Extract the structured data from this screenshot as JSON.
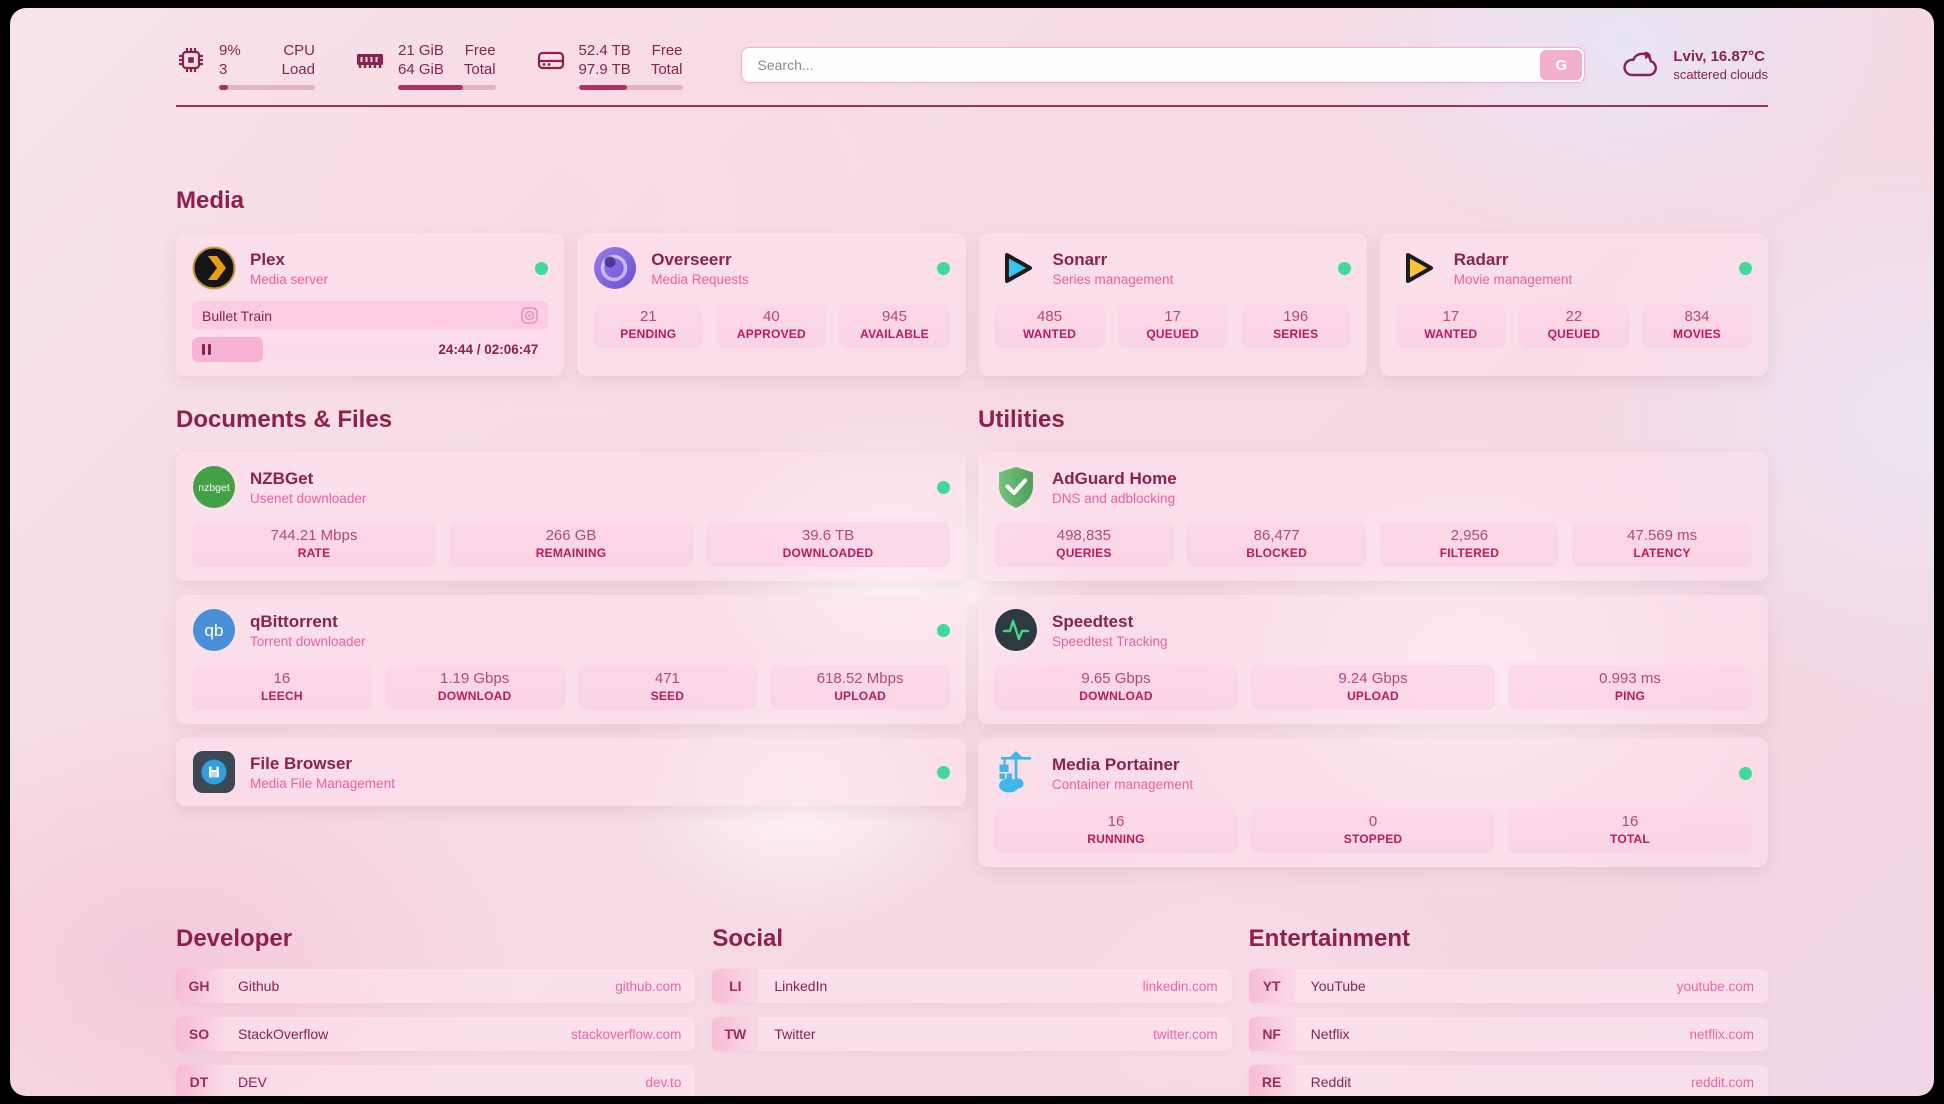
{
  "colors": {
    "maroon": "#8c2150",
    "heading": "#8f1f4e",
    "accent_pink": "#ef5f9e",
    "label_crimson": "#c2175f",
    "status_green": "#3fd99a"
  },
  "header": {
    "cpu": {
      "icon": "cpu-chip-icon",
      "values": [
        "9%",
        "3"
      ],
      "labels": [
        "CPU",
        "Load"
      ],
      "progress_pct": 9
    },
    "memory": {
      "icon": "ram-icon",
      "values": [
        "21 GiB",
        "64 GiB"
      ],
      "labels": [
        "Free",
        "Total"
      ],
      "progress_pct": 67
    },
    "disk": {
      "icon": "hard-drive-icon",
      "values": [
        "52.4 TB",
        "97.9 TB"
      ],
      "labels": [
        "Free",
        "Total"
      ],
      "progress_pct": 47
    },
    "search": {
      "placeholder": "Search...",
      "button_label": "G"
    },
    "weather": {
      "icon": "cloud-icon",
      "location_temp": "Lviv, 16.87°C",
      "condition": "scattered clouds"
    }
  },
  "sections": {
    "media": {
      "title": "Media",
      "apps": {
        "plex": {
          "name": "Plex",
          "description": "Media server",
          "online": true,
          "now_playing": {
            "title": "Bullet Train",
            "time_display": "24:44 / 02:06:47",
            "progress_pct": 20,
            "state": "paused"
          }
        },
        "overseerr": {
          "name": "Overseerr",
          "description": "Media Requests",
          "online": true,
          "stats": [
            {
              "value": "21",
              "label": "PENDING"
            },
            {
              "value": "40",
              "label": "APPROVED"
            },
            {
              "value": "945",
              "label": "AVAILABLE"
            }
          ]
        },
        "sonarr": {
          "name": "Sonarr",
          "description": "Series management",
          "online": true,
          "stats": [
            {
              "value": "485",
              "label": "WANTED"
            },
            {
              "value": "17",
              "label": "QUEUED"
            },
            {
              "value": "196",
              "label": "SERIES"
            }
          ]
        },
        "radarr": {
          "name": "Radarr",
          "description": "Movie management",
          "online": true,
          "stats": [
            {
              "value": "17",
              "label": "WANTED"
            },
            {
              "value": "22",
              "label": "QUEUED"
            },
            {
              "value": "834",
              "label": "MOVIES"
            }
          ]
        }
      }
    },
    "documents": {
      "title": "Documents & Files",
      "apps": {
        "nzbget": {
          "name": "NZBGet",
          "description": "Usenet downloader",
          "online": true,
          "stats": [
            {
              "value": "744.21 Mbps",
              "label": "RATE"
            },
            {
              "value": "266 GB",
              "label": "REMAINING"
            },
            {
              "value": "39.6 TB",
              "label": "DOWNLOADED"
            }
          ]
        },
        "qbittorrent": {
          "name": "qBittorrent",
          "description": "Torrent downloader",
          "online": true,
          "stats": [
            {
              "value": "16",
              "label": "LEECH"
            },
            {
              "value": "1.19 Gbps",
              "label": "DOWNLOAD"
            },
            {
              "value": "471",
              "label": "SEED"
            },
            {
              "value": "618.52 Mbps",
              "label": "UPLOAD"
            }
          ]
        },
        "filebrowser": {
          "name": "File Browser",
          "description": "Media File Management",
          "online": true
        }
      }
    },
    "utilities": {
      "title": "Utilities",
      "apps": {
        "adguard": {
          "name": "AdGuard Home",
          "description": "DNS and adblocking",
          "stats": [
            {
              "value": "498,835",
              "label": "QUERIES"
            },
            {
              "value": "86,477",
              "label": "BLOCKED"
            },
            {
              "value": "2,956",
              "label": "FILTERED"
            },
            {
              "value": "47.569 ms",
              "label": "LATENCY"
            }
          ]
        },
        "speedtest": {
          "name": "Speedtest",
          "description": "Speedtest Tracking",
          "stats": [
            {
              "value": "9.65 Gbps",
              "label": "DOWNLOAD"
            },
            {
              "value": "9.24 Gbps",
              "label": "UPLOAD"
            },
            {
              "value": "0.993 ms",
              "label": "PING"
            }
          ]
        },
        "portainer": {
          "name": "Media Portainer",
          "description": "Container management",
          "online": true,
          "stats": [
            {
              "value": "16",
              "label": "RUNNING"
            },
            {
              "value": "0",
              "label": "STOPPED"
            },
            {
              "value": "16",
              "label": "TOTAL"
            }
          ]
        }
      }
    },
    "bookmarks": [
      {
        "title": "Developer",
        "links": [
          {
            "abbr": "GH",
            "name": "Github",
            "url": "github.com"
          },
          {
            "abbr": "SO",
            "name": "StackOverflow",
            "url": "stackoverflow.com"
          },
          {
            "abbr": "DT",
            "name": "DEV",
            "url": "dev.to"
          }
        ]
      },
      {
        "title": "Social",
        "links": [
          {
            "abbr": "LI",
            "name": "LinkedIn",
            "url": "linkedin.com"
          },
          {
            "abbr": "TW",
            "name": "Twitter",
            "url": "twitter.com"
          }
        ]
      },
      {
        "title": "Entertainment",
        "links": [
          {
            "abbr": "YT",
            "name": "YouTube",
            "url": "youtube.com"
          },
          {
            "abbr": "NF",
            "name": "Netflix",
            "url": "netflix.com"
          },
          {
            "abbr": "RE",
            "name": "Reddit",
            "url": "reddit.com"
          }
        ]
      }
    ]
  }
}
